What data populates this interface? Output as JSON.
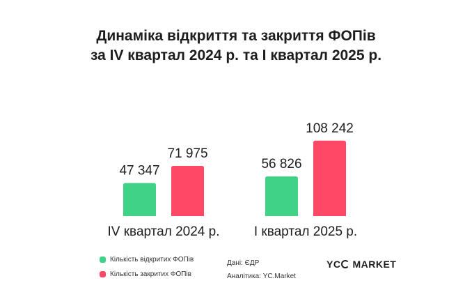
{
  "title_line1": "Динаміка відкриття та закриття ФОПів",
  "title_line2": "за IV квартал 2024 р. та I квартал 2025 р.",
  "colors": {
    "opened": "#3fd388",
    "closed": "#ff4766"
  },
  "legend": {
    "opened": "Кількість відкритих ФОПів",
    "closed": "Кількість закритих ФОПів"
  },
  "source": {
    "data": "Дані: ЄДР",
    "analytics": "Аналітика: YC.Market"
  },
  "logo": {
    "left": "YC",
    "right": "MARKET"
  },
  "chart_data": {
    "type": "bar",
    "categories": [
      "IV квартал 2024 р.",
      "I квартал 2025 р."
    ],
    "series": [
      {
        "name": "Кількість відкритих ФОПів",
        "values": [
          47347,
          56826
        ],
        "labels": [
          "47 347",
          "56 826"
        ]
      },
      {
        "name": "Кількість закритих ФОПів",
        "values": [
          71975,
          108242
        ],
        "labels": [
          "71 975",
          "108 242"
        ]
      }
    ],
    "title": "Динаміка відкриття та закриття ФОПів за IV квартал 2024 р. та I квартал 2025 р.",
    "xlabel": "",
    "ylabel": "",
    "ylim": [
      0,
      260000
    ],
    "grid": false,
    "legend_position": "bottom-left"
  }
}
